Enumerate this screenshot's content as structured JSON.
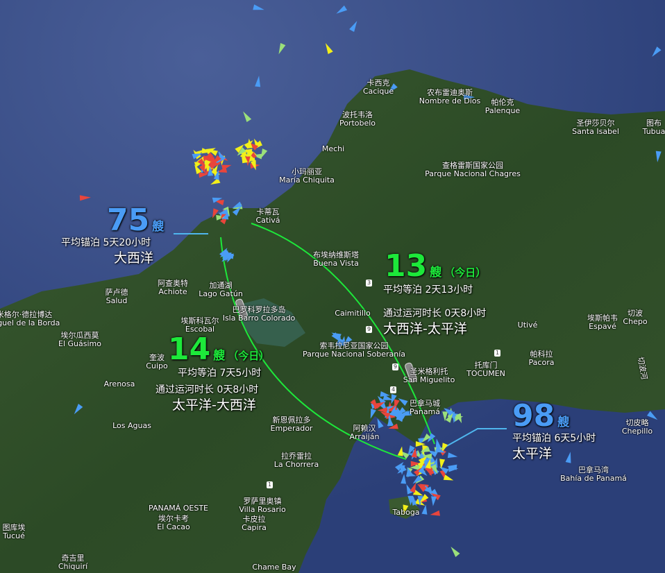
{
  "map": {
    "colors": {
      "ocean": "#2f4680",
      "land": "#2f4a2a",
      "route": "#1de83a",
      "leader": "#4fb6ee",
      "count_blue": "#4a9cf5",
      "count_green": "#1de83a"
    },
    "stats": {
      "atlantic_anchor": {
        "count": "75",
        "unit": "艘",
        "avg": "平均锚泊 5天20小时",
        "name": "大西洋"
      },
      "atl_to_pac": {
        "count": "13",
        "unit": "艘",
        "today": "（今日）",
        "wait": "平均等泊 2天13小时",
        "transit": "通过运河时长 0天8小时",
        "route": "大西洋-太平洋"
      },
      "pac_to_atl": {
        "count": "14",
        "unit": "艘",
        "today": "（今日）",
        "wait": "平均等泊 7天5小时",
        "transit": "通过运河时长 0天8小时",
        "route": "太平洋-大西洋"
      },
      "pacific_anchor": {
        "count": "98",
        "unit": "艘",
        "avg": "平均锚泊 6天5小时",
        "name": "太平洋"
      }
    },
    "places": [
      {
        "zh": "卡西克",
        "en": "Cacique"
      },
      {
        "zh": "农布雷迪奥斯",
        "en": "Nombre de Dios"
      },
      {
        "zh": "帕伦克",
        "en": "Palenque"
      },
      {
        "zh": "圣伊莎贝尔",
        "en": "Santa Isabel"
      },
      {
        "zh": "图布",
        "en": "Tubua"
      },
      {
        "zh": "波托韦洛",
        "en": "Portobelo"
      },
      {
        "zh": "",
        "en": "Mechi"
      },
      {
        "zh": "小玛丽亚",
        "en": "María Chiquita"
      },
      {
        "zh": "查格雷斯国家公园",
        "en": "Parque Nacional Chagres"
      },
      {
        "zh": "卡蒂瓦",
        "en": "Cativá"
      },
      {
        "zh": "布埃纳维斯塔",
        "en": "Buena Vista"
      },
      {
        "zh": "阿查奥特",
        "en": "Achiote"
      },
      {
        "zh": "萨卢德",
        "en": "Salud"
      },
      {
        "zh": "加通湖",
        "en": "Lago Gatún"
      },
      {
        "zh": "巴罗科罗拉多岛",
        "en": "Isla Barro Colorado"
      },
      {
        "zh": "米格尔·德拉博达",
        "en": "Miguel de la Borda"
      },
      {
        "zh": "埃斯科瓦尔",
        "en": "Escobal"
      },
      {
        "zh": "埃尔瓜西莫",
        "en": "El Guásimo"
      },
      {
        "zh": "",
        "en": "Caimitillo"
      },
      {
        "zh": "",
        "en": "Utivé"
      },
      {
        "zh": "埃斯帕韦",
        "en": "Espavé"
      },
      {
        "zh": "切波",
        "en": "Chepo"
      },
      {
        "zh": "索韦拉尼亚国家公园",
        "en": "Parque Nacional Soberanía"
      },
      {
        "zh": "圣米格利托",
        "en": "San Miguelito"
      },
      {
        "zh": "托库门",
        "en": "TOCUMEN"
      },
      {
        "zh": "帕科拉",
        "en": "Pacora"
      },
      {
        "zh": "奎波",
        "en": "Cuipo"
      },
      {
        "zh": "",
        "en": "Arenosa"
      },
      {
        "zh": "新恩佩拉多",
        "en": "Emperador"
      },
      {
        "zh": "巴拿马城",
        "en": "Panamá"
      },
      {
        "zh": "阿赖汉",
        "en": "Arraiján"
      },
      {
        "zh": "",
        "en": "Los Aguas"
      },
      {
        "zh": "切皮略",
        "en": "Chepillo"
      },
      {
        "zh": "拉乔雷拉",
        "en": "La Chorrera"
      },
      {
        "zh": "巴拿马湾",
        "en": "Bahía de Panamá"
      },
      {
        "zh": "",
        "en": "PANAMÁ OESTE"
      },
      {
        "zh": "罗萨里奥镇",
        "en": "Villa Rosario"
      },
      {
        "zh": "埃尔卡考",
        "en": "El Cacao"
      },
      {
        "zh": "卡皮拉",
        "en": "Capira"
      },
      {
        "zh": "图库埃",
        "en": "Tucué"
      },
      {
        "zh": "奇吉里",
        "en": "Chiquirí"
      },
      {
        "zh": "",
        "en": "Chame Bay"
      },
      {
        "zh": "",
        "en": "Taboga"
      },
      {
        "zh": "切波河",
        "en": ""
      }
    ],
    "road_shields": [
      "3",
      "9",
      "9",
      "1",
      "4",
      "1"
    ]
  }
}
